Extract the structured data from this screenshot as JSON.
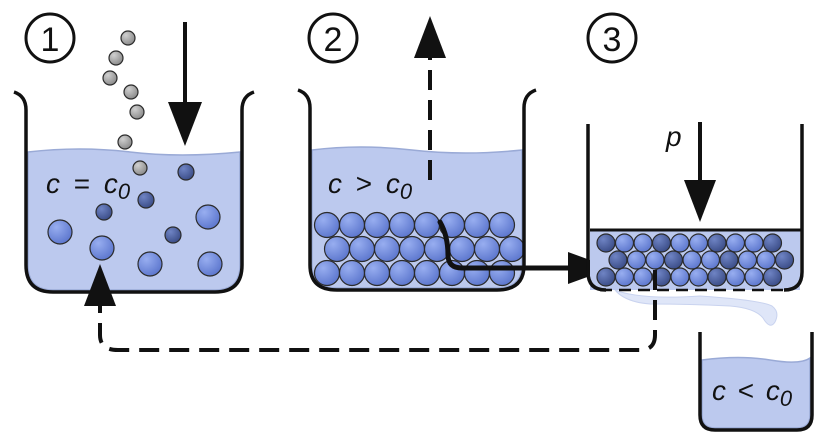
{
  "steps": [
    {
      "number": "1",
      "condition": {
        "symbol": "c",
        "relation": "=",
        "ref": "c",
        "ref_subscript": "0"
      }
    },
    {
      "number": "2",
      "condition": {
        "symbol": "c",
        "relation": ">",
        "ref": "c",
        "ref_subscript": "0"
      }
    },
    {
      "number": "3",
      "pressure_label": "p"
    }
  ],
  "filtrate": {
    "condition": {
      "symbol": "c",
      "relation": "<",
      "ref": "c",
      "ref_subscript": "0"
    }
  },
  "colors": {
    "liquid": "#bcc9ee",
    "liquid_edge": "#9aaad6",
    "particle": "#6d88dc",
    "particle_dark": "#4a5f9e",
    "dropping_particle": "#a6a6a6",
    "outline": "#111111",
    "membrane_liquid": "#dfe6f8"
  },
  "icons": [
    "down-arrow-icon",
    "up-dashed-arrow-icon",
    "right-arrow-icon",
    "return-dashed-arrow-icon"
  ]
}
